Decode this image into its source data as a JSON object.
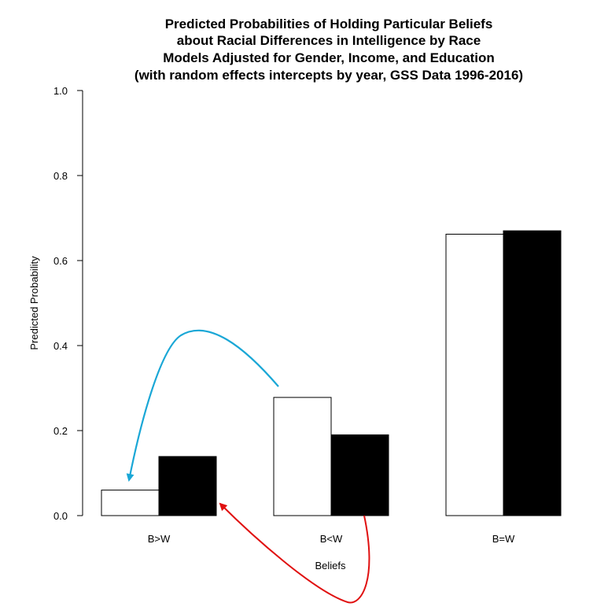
{
  "chart_data": {
    "type": "bar",
    "title_lines": [
      "Predicted Probabilities of Holding Particular Beliefs",
      "about Racial Differences in Intelligence by Race",
      "Models Adjusted for Gender, Income, and Education",
      "(with random effects intercepts by year, GSS Data 1996-2016)"
    ],
    "xlabel": "Beliefs",
    "ylabel": "Predicted Probability",
    "ylim": [
      0,
      1
    ],
    "yticks": [
      "0.0",
      "0.2",
      "0.4",
      "0.6",
      "0.8",
      "1.0"
    ],
    "categories": [
      "B>W",
      "B<W",
      "B=W"
    ],
    "series": [
      {
        "fill": "#ffffff",
        "values": [
          0.06,
          0.278,
          0.662
        ]
      },
      {
        "fill": "#000000",
        "values": [
          0.139,
          0.19,
          0.67
        ]
      }
    ],
    "grid": false,
    "legend": "none",
    "annotations": [
      {
        "kind": "arrow",
        "color": "#1aa7d6",
        "description": "curved arrow from B<W group to the first bar of B>W"
      },
      {
        "kind": "arrow",
        "color": "#e01010",
        "description": "curved arrow from below B<W black bar to the black bar of B>W"
      }
    ]
  }
}
